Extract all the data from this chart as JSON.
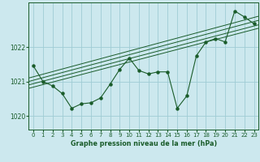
{
  "title": "Graphe pression niveau de la mer (hPa)",
  "background_color": "#cce8ee",
  "grid_color": "#9fccd4",
  "line_color": "#1a5c2a",
  "xlim": [
    -0.5,
    23.5
  ],
  "ylim": [
    1019.6,
    1023.3
  ],
  "yticks": [
    1020,
    1021,
    1022
  ],
  "xticks": [
    0,
    1,
    2,
    3,
    4,
    5,
    6,
    7,
    8,
    9,
    10,
    11,
    12,
    13,
    14,
    15,
    16,
    17,
    18,
    19,
    20,
    21,
    22,
    23
  ],
  "main_series_x": [
    0,
    1,
    2,
    3,
    4,
    5,
    6,
    7,
    8,
    9,
    10,
    11,
    12,
    13,
    14,
    15,
    16,
    17,
    18,
    19,
    20,
    21,
    22,
    23
  ],
  "main_series_y": [
    1021.45,
    1021.0,
    1020.87,
    1020.65,
    1020.22,
    1020.35,
    1020.38,
    1020.52,
    1020.92,
    1021.35,
    1021.68,
    1021.32,
    1021.22,
    1021.28,
    1021.28,
    1020.22,
    1020.58,
    1021.75,
    1022.15,
    1022.25,
    1022.15,
    1023.05,
    1022.88,
    1022.68
  ],
  "trend_lines": [
    {
      "x": [
        -0.5,
        23.5
      ],
      "y": [
        1020.8,
        1022.55
      ]
    },
    {
      "x": [
        -0.5,
        23.5
      ],
      "y": [
        1020.9,
        1022.65
      ]
    },
    {
      "x": [
        -0.5,
        23.5
      ],
      "y": [
        1021.0,
        1022.78
      ]
    },
    {
      "x": [
        -0.5,
        23.5
      ],
      "y": [
        1021.1,
        1022.9
      ]
    }
  ]
}
